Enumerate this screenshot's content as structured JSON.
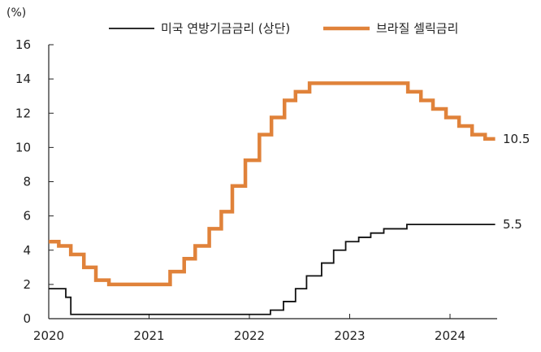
{
  "chart_data": {
    "type": "line",
    "unit_label": "(%)",
    "xlim": [
      2020.0,
      2024.45
    ],
    "ylim": [
      0,
      16
    ],
    "x_ticks": [
      2020,
      2021,
      2022,
      2023,
      2024
    ],
    "y_ticks": [
      0,
      2,
      4,
      6,
      8,
      10,
      12,
      14,
      16
    ],
    "legend_position": "top",
    "series": [
      {
        "name": "미국 연방기금금리 (상단)",
        "color": "#111111",
        "interpolation": "step",
        "end_label": "5.5",
        "points": [
          [
            2020.0,
            1.75
          ],
          [
            2020.17,
            1.25
          ],
          [
            2020.22,
            0.25
          ],
          [
            2022.21,
            0.5
          ],
          [
            2022.34,
            1.0
          ],
          [
            2022.46,
            1.75
          ],
          [
            2022.57,
            2.5
          ],
          [
            2022.72,
            3.25
          ],
          [
            2022.84,
            4.0
          ],
          [
            2022.96,
            4.5
          ],
          [
            2023.09,
            4.75
          ],
          [
            2023.21,
            5.0
          ],
          [
            2023.34,
            5.25
          ],
          [
            2023.57,
            5.5
          ],
          [
            2024.45,
            5.5
          ]
        ]
      },
      {
        "name": "브라질 셀릭금리",
        "color": "#E0823A",
        "interpolation": "step",
        "end_label": "10.5",
        "points": [
          [
            2020.0,
            4.5
          ],
          [
            2020.1,
            4.25
          ],
          [
            2020.22,
            3.75
          ],
          [
            2020.35,
            3.0
          ],
          [
            2020.47,
            2.25
          ],
          [
            2020.6,
            2.0
          ],
          [
            2021.21,
            2.75
          ],
          [
            2021.35,
            3.5
          ],
          [
            2021.46,
            4.25
          ],
          [
            2021.6,
            5.25
          ],
          [
            2021.72,
            6.25
          ],
          [
            2021.83,
            7.75
          ],
          [
            2021.96,
            9.25
          ],
          [
            2022.1,
            10.75
          ],
          [
            2022.22,
            11.75
          ],
          [
            2022.35,
            12.75
          ],
          [
            2022.46,
            13.25
          ],
          [
            2022.6,
            13.75
          ],
          [
            2023.58,
            13.25
          ],
          [
            2023.71,
            12.75
          ],
          [
            2023.83,
            12.25
          ],
          [
            2023.96,
            11.75
          ],
          [
            2024.09,
            11.25
          ],
          [
            2024.22,
            10.75
          ],
          [
            2024.35,
            10.5
          ],
          [
            2024.45,
            10.5
          ]
        ]
      }
    ]
  }
}
